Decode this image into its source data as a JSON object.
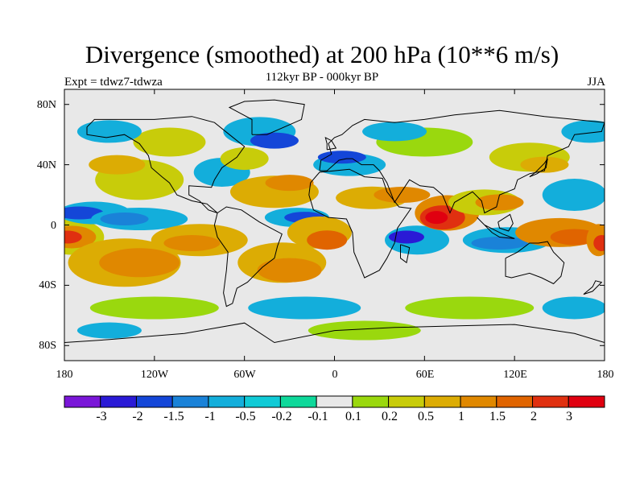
{
  "title": "Divergence (smoothed) at 200 hPa (10**6 m/s)",
  "experiment": "Expt = tdwz7-tdwza",
  "period": "112kyr BP - 000kyr BP",
  "season": "JJA",
  "lat_labels": [
    "80N",
    "40N",
    "0",
    "40S",
    "80S"
  ],
  "lon_labels": [
    "180",
    "120W",
    "60W",
    "0",
    "60E",
    "120E",
    "180"
  ],
  "colorbar": {
    "labels": [
      "-3",
      "-2",
      "-1.5",
      "-1",
      "-0.5",
      "-0.2",
      "-0.1",
      "0.1",
      "0.2",
      "0.5",
      "1",
      "1.5",
      "2",
      "3"
    ],
    "colors": [
      "#7a16d8",
      "#2a1ad6",
      "#1446d8",
      "#1a82d8",
      "#13aedb",
      "#10cad6",
      "#0ed89a",
      "#e8e8e8",
      "#9ad80e",
      "#c8cc0a",
      "#dcac04",
      "#e08800",
      "#e06400",
      "#e03010",
      "#e00010"
    ]
  },
  "colors": {
    "background": "#e8e8e8",
    "coastline": "#000000"
  }
}
